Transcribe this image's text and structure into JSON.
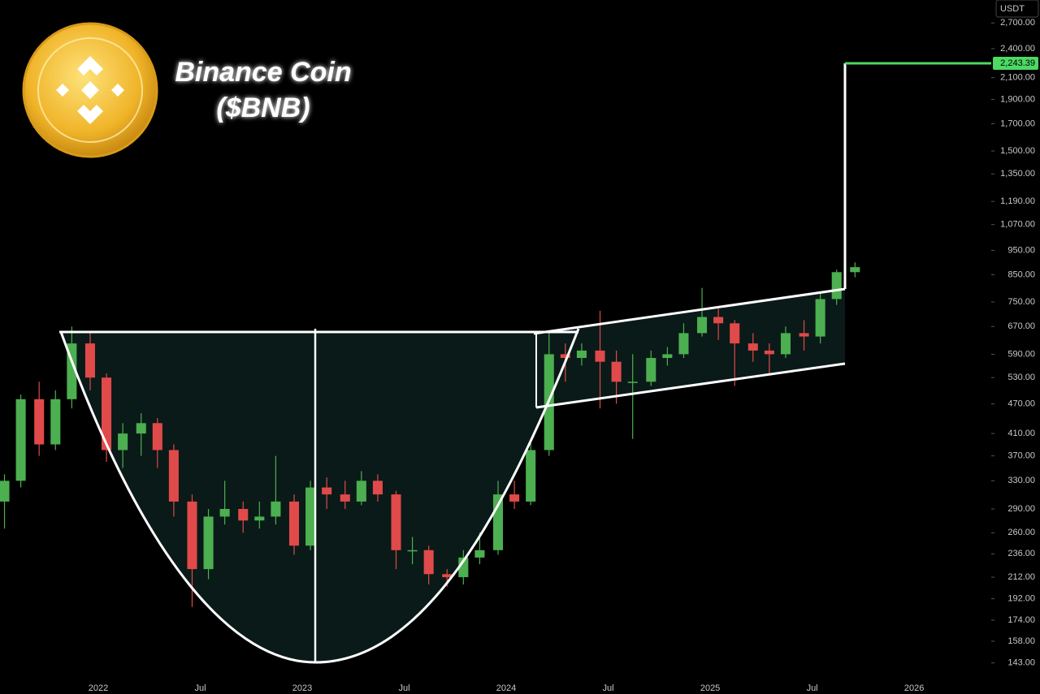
{
  "chart_data": {
    "type": "candlestick",
    "title": "Binance Coin",
    "subtitle": "($BNB)",
    "currency": "USDT",
    "log_scale": true,
    "up_color": "#4caf50",
    "down_color": "#e04a4a",
    "x": [
      2021.54,
      2021.62,
      2021.71,
      2021.79,
      2021.87,
      2021.96,
      2022.04,
      2022.12,
      2022.21,
      2022.29,
      2022.37,
      2022.46,
      2022.54,
      2022.62,
      2022.71,
      2022.79,
      2022.87,
      2022.96,
      2023.04,
      2023.12,
      2023.21,
      2023.29,
      2023.37,
      2023.46,
      2023.54,
      2023.62,
      2023.71,
      2023.79,
      2023.87,
      2023.96,
      2024.04,
      2024.12,
      2024.21,
      2024.29,
      2024.37,
      2024.46,
      2024.54,
      2024.62,
      2024.71,
      2024.79,
      2024.87,
      2024.96,
      2025.04,
      2025.12,
      2025.21,
      2025.29,
      2025.37,
      2025.46,
      2025.54,
      2025.62,
      2025.71
    ],
    "open": [
      300,
      330,
      480,
      390,
      480,
      620,
      530,
      380,
      410,
      430,
      380,
      300,
      220,
      280,
      290,
      275,
      280,
      300,
      245,
      320,
      310,
      300,
      330,
      310,
      240,
      240,
      215,
      212,
      232,
      240,
      310,
      300,
      380,
      590,
      580,
      600,
      570,
      520,
      520,
      580,
      590,
      650,
      700,
      680,
      620,
      600,
      590,
      650,
      640,
      760,
      860
    ],
    "high": [
      340,
      490,
      520,
      500,
      670,
      650,
      540,
      430,
      450,
      440,
      390,
      310,
      290,
      330,
      300,
      300,
      370,
      310,
      330,
      335,
      330,
      345,
      340,
      315,
      255,
      245,
      220,
      240,
      260,
      330,
      330,
      400,
      650,
      620,
      620,
      720,
      600,
      590,
      600,
      610,
      680,
      800,
      730,
      690,
      650,
      620,
      670,
      690,
      780,
      870,
      900
    ],
    "low": [
      265,
      320,
      370,
      380,
      460,
      500,
      360,
      350,
      370,
      350,
      280,
      185,
      210,
      270,
      260,
      265,
      270,
      235,
      240,
      290,
      290,
      295,
      300,
      220,
      225,
      205,
      203,
      205,
      225,
      235,
      290,
      295,
      370,
      520,
      560,
      460,
      470,
      400,
      510,
      560,
      580,
      640,
      630,
      510,
      570,
      540,
      580,
      600,
      620,
      740,
      840
    ],
    "close": [
      330,
      480,
      390,
      480,
      620,
      530,
      380,
      410,
      430,
      380,
      300,
      220,
      280,
      290,
      275,
      280,
      300,
      245,
      320,
      310,
      300,
      330,
      310,
      240,
      240,
      215,
      212,
      232,
      240,
      310,
      300,
      380,
      590,
      580,
      600,
      570,
      520,
      520,
      580,
      590,
      650,
      700,
      680,
      620,
      600,
      590,
      650,
      640,
      760,
      860,
      880
    ],
    "xlim": [
      2021.518,
      2026.378
    ],
    "xticks": [
      {
        "value": 2022,
        "label": "2022"
      },
      {
        "value": 2022.5,
        "label": "Jul"
      },
      {
        "value": 2023,
        "label": "2023"
      },
      {
        "value": 2023.5,
        "label": "Jul"
      },
      {
        "value": 2024,
        "label": "2024"
      },
      {
        "value": 2024.5,
        "label": "Jul"
      },
      {
        "value": 2025,
        "label": "2025"
      },
      {
        "value": 2025.5,
        "label": "Jul"
      },
      {
        "value": 2026,
        "label": "2026"
      }
    ],
    "ylim": [
      124,
      3000
    ],
    "yticks": [
      {
        "value": 2700,
        "label": "2,700.00"
      },
      {
        "value": 2400,
        "label": "2,400.00"
      },
      {
        "value": 2100,
        "label": "2,100.00"
      },
      {
        "value": 1900,
        "label": "1,900.00"
      },
      {
        "value": 1700,
        "label": "1,700.00"
      },
      {
        "value": 1500,
        "label": "1,500.00"
      },
      {
        "value": 1350,
        "label": "1,350.00"
      },
      {
        "value": 1190,
        "label": "1,190.00"
      },
      {
        "value": 1070,
        "label": "1,070.00"
      },
      {
        "value": 950,
        "label": "950.00"
      },
      {
        "value": 850,
        "label": "850.00"
      },
      {
        "value": 750,
        "label": "750.00"
      },
      {
        "value": 670,
        "label": "670.00"
      },
      {
        "value": 590,
        "label": "590.00"
      },
      {
        "value": 530,
        "label": "530.00"
      },
      {
        "value": 470,
        "label": "470.00"
      },
      {
        "value": 410,
        "label": "410.00"
      },
      {
        "value": 370,
        "label": "370.00"
      },
      {
        "value": 330,
        "label": "330.00"
      },
      {
        "value": 290,
        "label": "290.00"
      },
      {
        "value": 260,
        "label": "260.00"
      },
      {
        "value": 236,
        "label": "236.00"
      },
      {
        "value": 212,
        "label": "212.00"
      },
      {
        "value": 192,
        "label": "192.00"
      },
      {
        "value": 174,
        "label": "174.00"
      },
      {
        "value": 158,
        "label": "158.00"
      },
      {
        "value": 143,
        "label": "143.00"
      }
    ],
    "target": {
      "value": 2243.39,
      "label": "2,243.39"
    },
    "target_color": "#4cd964"
  }
}
